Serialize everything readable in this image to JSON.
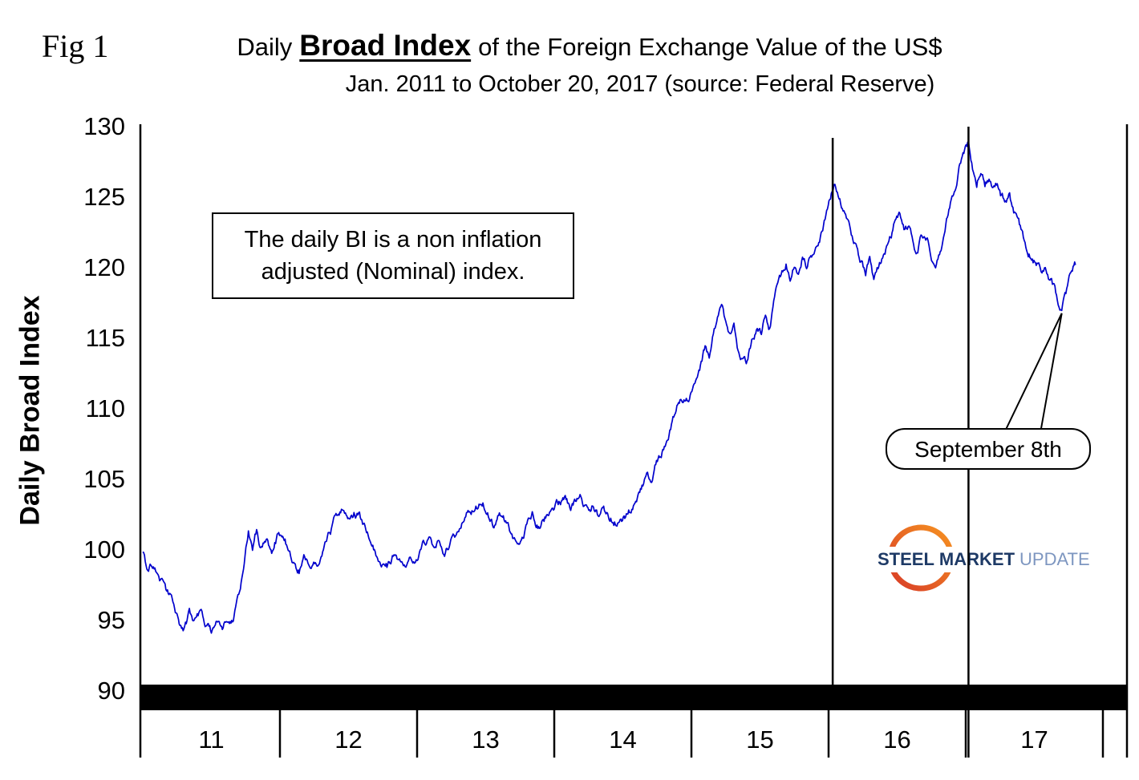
{
  "figure": {
    "fig_label": "Fig 1",
    "title_prefix": "Daily",
    "title_emph": "Broad Index",
    "title_suffix": "of the Foreign Exchange Value of the US$",
    "subtitle": "Jan. 2011 to October 20, 2017 (source: Federal Reserve)"
  },
  "annotations": {
    "note": "The daily BI is a non inflation adjusted (Nominal) index.",
    "callout": "September 8th"
  },
  "logo": {
    "steel": "STEEL",
    "market": "MARKET",
    "update": "UPDATE",
    "navy": "#1E3A66",
    "light_blue": "#7D96C0",
    "orange": "#F69321",
    "red": "#D83B27"
  },
  "chart_data": {
    "type": "line",
    "title": "Daily Broad Index of the Foreign Exchange Value of the US$",
    "subtitle": "Jan. 2011 to October 20, 2017 (source: Federal Reserve)",
    "xlabel": "",
    "ylabel": "Daily Broad Index",
    "x_ticks": [
      "11",
      "12",
      "13",
      "14",
      "15",
      "16",
      "17"
    ],
    "y_ticks": [
      90,
      95,
      100,
      105,
      110,
      115,
      120,
      125,
      130
    ],
    "ylim": [
      90,
      130
    ],
    "xlim": [
      2011,
      2018.17
    ],
    "grid": false,
    "legend": false,
    "line_color": "#0000CC",
    "axis_color": "#000000",
    "noise_amplitude": 0.45,
    "vertical_marker_lines_x": [
      2016.03,
      2017.02
    ],
    "callout_point": {
      "x": 2017.7,
      "y": 117.0
    },
    "series": [
      {
        "name": "Daily Broad Index (Nominal)",
        "keypoints": [
          [
            2011.0,
            99.9
          ],
          [
            2011.03,
            98.6
          ],
          [
            2011.06,
            99.0
          ],
          [
            2011.1,
            98.2
          ],
          [
            2011.14,
            97.6
          ],
          [
            2011.18,
            96.8
          ],
          [
            2011.22,
            96.2
          ],
          [
            2011.26,
            94.9
          ],
          [
            2011.3,
            94.3
          ],
          [
            2011.34,
            95.4
          ],
          [
            2011.38,
            94.9
          ],
          [
            2011.42,
            95.6
          ],
          [
            2011.46,
            94.6
          ],
          [
            2011.5,
            94.1
          ],
          [
            2011.54,
            94.9
          ],
          [
            2011.58,
            94.4
          ],
          [
            2011.62,
            95.3
          ],
          [
            2011.66,
            95.0
          ],
          [
            2011.7,
            96.5
          ],
          [
            2011.74,
            98.5
          ],
          [
            2011.77,
            101.2
          ],
          [
            2011.8,
            100.1
          ],
          [
            2011.83,
            101.4
          ],
          [
            2011.86,
            100.3
          ],
          [
            2011.9,
            100.9
          ],
          [
            2011.94,
            100.1
          ],
          [
            2011.98,
            100.9
          ],
          [
            2012.02,
            101.1
          ],
          [
            2012.06,
            100.1
          ],
          [
            2012.1,
            98.9
          ],
          [
            2012.14,
            98.6
          ],
          [
            2012.18,
            99.4
          ],
          [
            2012.24,
            99.0
          ],
          [
            2012.3,
            99.4
          ],
          [
            2012.34,
            100.6
          ],
          [
            2012.38,
            101.5
          ],
          [
            2012.42,
            102.4
          ],
          [
            2012.46,
            103.0
          ],
          [
            2012.5,
            102.3
          ],
          [
            2012.54,
            102.6
          ],
          [
            2012.58,
            102.4
          ],
          [
            2012.62,
            101.6
          ],
          [
            2012.66,
            100.8
          ],
          [
            2012.7,
            99.8
          ],
          [
            2012.74,
            99.2
          ],
          [
            2012.78,
            98.8
          ],
          [
            2012.82,
            99.4
          ],
          [
            2012.86,
            99.0
          ],
          [
            2012.9,
            98.7
          ],
          [
            2012.95,
            99.3
          ],
          [
            2013.0,
            99.6
          ],
          [
            2013.04,
            100.3
          ],
          [
            2013.08,
            100.8
          ],
          [
            2013.12,
            100.3
          ],
          [
            2013.16,
            100.7
          ],
          [
            2013.2,
            99.9
          ],
          [
            2013.24,
            100.4
          ],
          [
            2013.28,
            101.0
          ],
          [
            2013.32,
            101.9
          ],
          [
            2013.36,
            102.6
          ],
          [
            2013.4,
            102.9
          ],
          [
            2013.44,
            103.2
          ],
          [
            2013.48,
            103.4
          ],
          [
            2013.52,
            102.6
          ],
          [
            2013.56,
            101.7
          ],
          [
            2013.6,
            102.7
          ],
          [
            2013.64,
            102.2
          ],
          [
            2013.68,
            101.3
          ],
          [
            2013.72,
            100.7
          ],
          [
            2013.76,
            100.9
          ],
          [
            2013.8,
            101.7
          ],
          [
            2013.84,
            102.3
          ],
          [
            2013.88,
            101.9
          ],
          [
            2013.92,
            102.2
          ],
          [
            2013.96,
            102.6
          ],
          [
            2014.0,
            102.8
          ],
          [
            2014.04,
            103.3
          ],
          [
            2014.08,
            103.7
          ],
          [
            2014.12,
            103.1
          ],
          [
            2014.16,
            103.4
          ],
          [
            2014.2,
            103.5
          ],
          [
            2014.24,
            102.8
          ],
          [
            2014.28,
            103.2
          ],
          [
            2014.32,
            102.6
          ],
          [
            2014.36,
            102.9
          ],
          [
            2014.4,
            102.3
          ],
          [
            2014.44,
            102.1
          ],
          [
            2014.48,
            102.0
          ],
          [
            2014.52,
            102.4
          ],
          [
            2014.56,
            102.9
          ],
          [
            2014.6,
            103.6
          ],
          [
            2014.64,
            104.4
          ],
          [
            2014.68,
            105.3
          ],
          [
            2014.71,
            104.9
          ],
          [
            2014.74,
            105.9
          ],
          [
            2014.78,
            106.8
          ],
          [
            2014.82,
            107.6
          ],
          [
            2014.86,
            108.8
          ],
          [
            2014.9,
            110.1
          ],
          [
            2014.94,
            110.7
          ],
          [
            2014.98,
            111.0
          ],
          [
            2015.02,
            111.9
          ],
          [
            2015.06,
            112.9
          ],
          [
            2015.1,
            114.3
          ],
          [
            2015.13,
            113.6
          ],
          [
            2015.16,
            115.2
          ],
          [
            2015.19,
            116.2
          ],
          [
            2015.22,
            117.5
          ],
          [
            2015.25,
            116.0
          ],
          [
            2015.28,
            115.1
          ],
          [
            2015.31,
            116.0
          ],
          [
            2015.34,
            114.0
          ],
          [
            2015.37,
            113.3
          ],
          [
            2015.4,
            113.1
          ],
          [
            2015.44,
            114.9
          ],
          [
            2015.48,
            115.4
          ],
          [
            2015.51,
            115.2
          ],
          [
            2015.54,
            116.9
          ],
          [
            2015.57,
            115.9
          ],
          [
            2015.6,
            117.6
          ],
          [
            2015.63,
            118.8
          ],
          [
            2015.66,
            119.6
          ],
          [
            2015.69,
            120.4
          ],
          [
            2015.72,
            118.9
          ],
          [
            2015.75,
            120.2
          ],
          [
            2015.78,
            119.6
          ],
          [
            2015.81,
            120.7
          ],
          [
            2015.84,
            120.1
          ],
          [
            2015.87,
            120.9
          ],
          [
            2015.9,
            121.4
          ],
          [
            2015.94,
            122.2
          ],
          [
            2015.98,
            123.5
          ],
          [
            2016.02,
            125.3
          ],
          [
            2016.04,
            126.2
          ],
          [
            2016.07,
            125.1
          ],
          [
            2016.1,
            124.4
          ],
          [
            2016.13,
            123.5
          ],
          [
            2016.16,
            122.6
          ],
          [
            2016.2,
            121.3
          ],
          [
            2016.24,
            120.4
          ],
          [
            2016.27,
            119.7
          ],
          [
            2016.3,
            120.6
          ],
          [
            2016.33,
            118.9
          ],
          [
            2016.36,
            119.6
          ],
          [
            2016.4,
            120.9
          ],
          [
            2016.44,
            121.8
          ],
          [
            2016.48,
            123.1
          ],
          [
            2016.52,
            123.4
          ],
          [
            2016.55,
            122.4
          ],
          [
            2016.58,
            122.9
          ],
          [
            2016.62,
            121.6
          ],
          [
            2016.65,
            121.0
          ],
          [
            2016.68,
            122.1
          ],
          [
            2016.72,
            121.9
          ],
          [
            2016.75,
            120.9
          ],
          [
            2016.78,
            120.7
          ],
          [
            2016.82,
            121.8
          ],
          [
            2016.86,
            123.4
          ],
          [
            2016.9,
            125.1
          ],
          [
            2016.94,
            126.6
          ],
          [
            2016.98,
            128.1
          ],
          [
            2017.02,
            128.9
          ],
          [
            2017.05,
            127.4
          ],
          [
            2017.08,
            126.3
          ],
          [
            2017.11,
            127.1
          ],
          [
            2017.14,
            126.0
          ],
          [
            2017.17,
            126.4
          ],
          [
            2017.2,
            125.5
          ],
          [
            2017.23,
            125.9
          ],
          [
            2017.26,
            125.1
          ],
          [
            2017.29,
            124.7
          ],
          [
            2017.32,
            125.0
          ],
          [
            2017.35,
            123.9
          ],
          [
            2017.38,
            123.1
          ],
          [
            2017.42,
            122.1
          ],
          [
            2017.45,
            121.4
          ],
          [
            2017.48,
            120.9
          ],
          [
            2017.52,
            120.3
          ],
          [
            2017.55,
            119.7
          ],
          [
            2017.58,
            119.9
          ],
          [
            2017.62,
            119.1
          ],
          [
            2017.65,
            118.4
          ],
          [
            2017.68,
            117.4
          ],
          [
            2017.7,
            117.0
          ],
          [
            2017.73,
            118.0
          ],
          [
            2017.76,
            119.1
          ],
          [
            2017.8,
            120.2
          ]
        ]
      }
    ]
  }
}
